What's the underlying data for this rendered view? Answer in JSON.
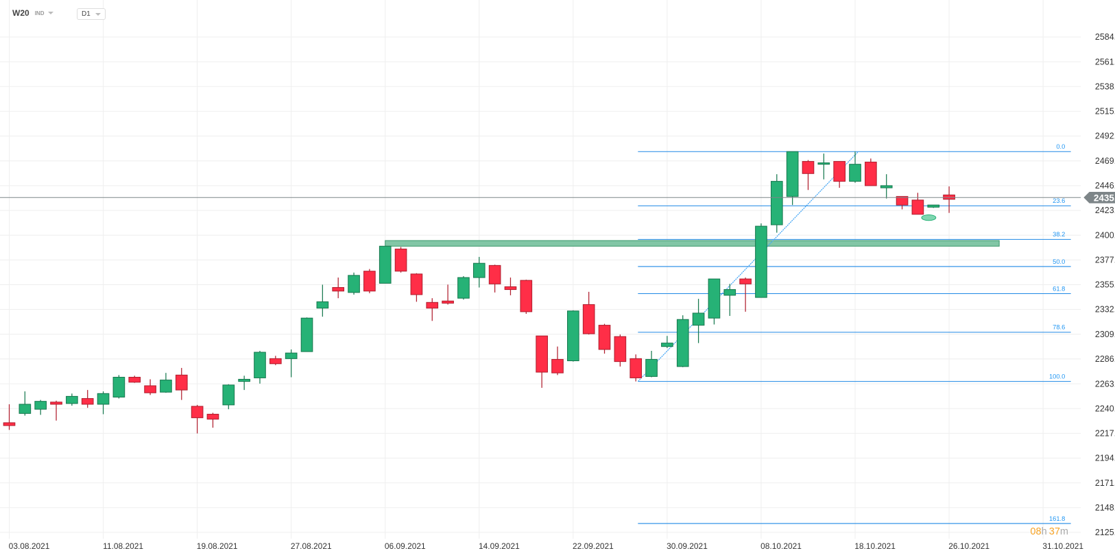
{
  "header": {
    "symbol": "W20",
    "class": "IND",
    "timeframe": "D1"
  },
  "countdown": {
    "hours": "08",
    "h": "h",
    "minutes": "37",
    "m": "m"
  },
  "colors": {
    "up": "#26b276",
    "up_border": "#17794f",
    "down": "#ff2e47",
    "down_border": "#b01e2e",
    "fib": "#1e88e5",
    "zone": "#82c6a6",
    "zone_border": "#3d9a6e",
    "last_price": "#7d8588",
    "countdown": "#f7a325"
  },
  "chart_data": {
    "type": "candlestick",
    "title": "W20 IND D1",
    "ylim": [
      2125.9,
      2584.1
    ],
    "y_ticks": [
      "2584.1",
      "2561.2",
      "2538.3",
      "2515.4",
      "2492.5",
      "2469.5",
      "2446.6",
      "2423.7",
      "2400.8",
      "2377.9",
      "2355.0",
      "2332.1",
      "2309.2",
      "2286.3",
      "2263.3",
      "2240.4",
      "2217.5",
      "2194.6",
      "2171.7",
      "2148.8",
      "2125.9"
    ],
    "x_ticks": [
      {
        "index": 0,
        "label": "03.08.2021"
      },
      {
        "index": 6,
        "label": "11.08.2021"
      },
      {
        "index": 12,
        "label": "19.08.2021"
      },
      {
        "index": 18,
        "label": "27.08.2021"
      },
      {
        "index": 24,
        "label": "06.09.2021"
      },
      {
        "index": 30,
        "label": "14.09.2021"
      },
      {
        "index": 36,
        "label": "22.09.2021"
      },
      {
        "index": 42,
        "label": "30.09.2021"
      },
      {
        "index": 48,
        "label": "08.10.2021"
      },
      {
        "index": 54,
        "label": "18.10.2021"
      },
      {
        "index": 60,
        "label": "26.10.2021"
      },
      {
        "index": 66,
        "label": "31.10.2021"
      }
    ],
    "ohlc": [
      [
        2227.3,
        2244.4,
        2220.7,
        2224.7
      ],
      [
        2235.9,
        2256.3,
        2233.9,
        2244.4
      ],
      [
        2239.8,
        2248.4,
        2234.6,
        2247.1
      ],
      [
        2246.4,
        2247.7,
        2229.3,
        2244.4
      ],
      [
        2245.1,
        2254.3,
        2243.1,
        2251.7
      ],
      [
        2249.7,
        2257.6,
        2241.1,
        2244.4
      ],
      [
        2244.4,
        2256.3,
        2235.2,
        2254.3
      ],
      [
        2251.0,
        2271.4,
        2249.7,
        2269.4
      ],
      [
        2269.4,
        2270.8,
        2264.2,
        2264.8
      ],
      [
        2261.5,
        2267.5,
        2253.0,
        2255.0
      ],
      [
        2255.6,
        2273.4,
        2255.0,
        2266.8
      ],
      [
        2271.4,
        2278.0,
        2248.4,
        2257.6
      ],
      [
        2242.5,
        2243.8,
        2217.4,
        2231.9
      ],
      [
        2235.2,
        2236.5,
        2222.7,
        2230.6
      ],
      [
        2243.8,
        2262.9,
        2239.8,
        2262.2
      ],
      [
        2265.5,
        2270.8,
        2257.6,
        2267.5
      ],
      [
        2268.8,
        2293.8,
        2263.5,
        2292.5
      ],
      [
        2286.6,
        2289.2,
        2280.6,
        2281.9
      ],
      [
        2286.6,
        2295.1,
        2269.4,
        2291.8
      ],
      [
        2293.1,
        2324.7,
        2293.1,
        2324.1
      ],
      [
        2333.3,
        2355.0,
        2325.4,
        2339.2
      ],
      [
        2352.4,
        2361.6,
        2342.5,
        2349.1
      ],
      [
        2347.8,
        2366.2,
        2345.8,
        2363.6
      ],
      [
        2367.5,
        2369.5,
        2347.1,
        2349.1
      ],
      [
        2356.3,
        2390.6,
        2356.3,
        2390.6
      ],
      [
        2388.0,
        2389.9,
        2366.2,
        2367.5
      ],
      [
        2364.9,
        2365.6,
        2339.2,
        2345.8
      ],
      [
        2338.6,
        2342.5,
        2321.5,
        2333.3
      ],
      [
        2339.9,
        2355.1,
        2336.6,
        2337.9
      ],
      [
        2342.5,
        2362.9,
        2341.2,
        2361.6
      ],
      [
        2361.6,
        2380.7,
        2352.4,
        2374.8
      ],
      [
        2372.8,
        2373.5,
        2347.8,
        2355.7
      ],
      [
        2353.1,
        2361.6,
        2345.2,
        2350.5
      ],
      [
        2359.0,
        2359.6,
        2328.0,
        2330.0
      ],
      [
        2307.6,
        2307.6,
        2259.6,
        2274.1
      ],
      [
        2285.9,
        2297.8,
        2271.4,
        2273.4
      ],
      [
        2284.6,
        2331.3,
        2283.9,
        2330.7
      ],
      [
        2336.6,
        2348.4,
        2308.9,
        2309.6
      ],
      [
        2317.5,
        2318.8,
        2291.2,
        2295.1
      ],
      [
        2307.0,
        2308.9,
        2279.3,
        2283.9
      ],
      [
        2286.6,
        2290.5,
        2265.5,
        2268.8
      ],
      [
        2270.1,
        2293.8,
        2269.4,
        2285.9
      ],
      [
        2297.8,
        2307.6,
        2296.4,
        2301.0
      ],
      [
        2279.3,
        2326.7,
        2278.7,
        2322.8
      ],
      [
        2317.5,
        2341.9,
        2301.0,
        2328.7
      ],
      [
        2324.1,
        2360.3,
        2318.2,
        2360.3
      ],
      [
        2345.2,
        2355.7,
        2326.1,
        2350.5
      ],
      [
        2360.3,
        2361.6,
        2330.0,
        2355.7
      ],
      [
        2343.2,
        2411.7,
        2343.2,
        2409.1
      ],
      [
        2410.4,
        2457.2,
        2403.1,
        2450.6
      ],
      [
        2436.6,
        2478.1,
        2428.7,
        2478.1
      ],
      [
        2469.0,
        2470.3,
        2442.6,
        2457.8
      ],
      [
        2466.4,
        2476.3,
        2452.4,
        2467.7
      ],
      [
        2469.0,
        2469.0,
        2444.6,
        2450.6
      ],
      [
        2450.6,
        2478.1,
        2449.3,
        2466.4
      ],
      [
        2468.4,
        2471.7,
        2447.2,
        2446.6
      ],
      [
        2444.6,
        2457.2,
        2434.7,
        2446.6
      ],
      [
        2436.6,
        2436.6,
        2424.7,
        2428.7
      ],
      [
        2433.3,
        2440.0,
        2420.7,
        2420.1
      ],
      [
        2426.7,
        2428.0,
        2426.0,
        2428.7
      ],
      [
        2438.0,
        2445.9,
        2421.4,
        2434.0
      ]
    ],
    "last_price": "2435.6",
    "fibonacci": {
      "high": 2478.1,
      "low": 2265.5,
      "start_index": 40.1,
      "end_index": 54.2,
      "levels": [
        {
          "ratio": 0.0,
          "label": "0.0"
        },
        {
          "ratio": 0.236,
          "label": "23.6"
        },
        {
          "ratio": 0.382,
          "label": "38.2"
        },
        {
          "ratio": 0.5,
          "label": "50.0"
        },
        {
          "ratio": 0.618,
          "label": "61.8"
        },
        {
          "ratio": 0.786,
          "label": "78.6"
        },
        {
          "ratio": 1.0,
          "label": "100.0"
        },
        {
          "ratio": 1.618,
          "label": "161.8"
        }
      ]
    },
    "zone": {
      "price_top": 2395.8,
      "price_bottom": 2390.6,
      "start_index": 24,
      "end_index": 63.2
    },
    "marker": {
      "index": 58.7,
      "price": 2417.0
    }
  }
}
